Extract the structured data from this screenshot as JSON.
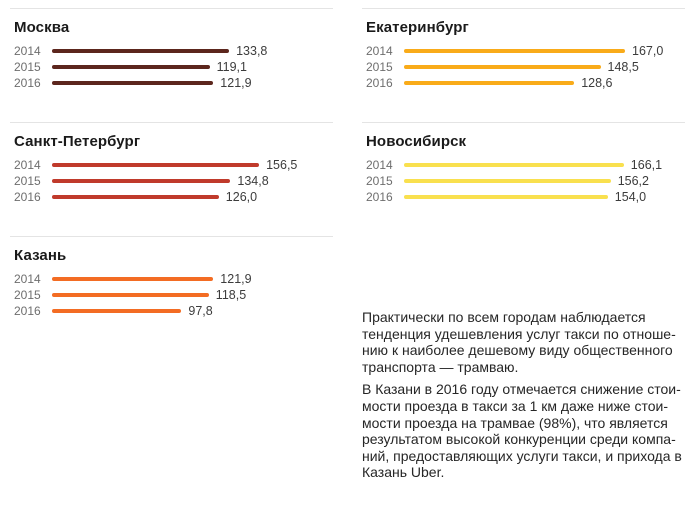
{
  "page": {
    "background": "#ffffff",
    "divider_color": "#e4e4e4"
  },
  "chart_data": {
    "type": "bar",
    "orientation": "horizontal",
    "categories": [
      "2014",
      "2015",
      "2016"
    ],
    "xlim": [
      0,
      170
    ],
    "grid": false,
    "value_labels": "end-of-bar",
    "series": [
      {
        "name": "Москва",
        "column": "left",
        "color": "#5c261d",
        "values": [
          133.8,
          119.1,
          121.9
        ],
        "labels": [
          "133,8",
          "119,1",
          "121,9"
        ]
      },
      {
        "name": "Санкт-Петербург",
        "column": "left",
        "color": "#c03a2b",
        "values": [
          156.5,
          134.8,
          126.0
        ],
        "labels": [
          "156,5",
          "134,8",
          "126,0"
        ]
      },
      {
        "name": "Казань",
        "column": "left",
        "color": "#f36c23",
        "values": [
          121.9,
          118.5,
          97.8
        ],
        "labels": [
          "121,9",
          "118,5",
          "97,8"
        ]
      },
      {
        "name": "Екатеринбург",
        "column": "right",
        "color": "#f9ab19",
        "values": [
          167.0,
          148.5,
          128.6
        ],
        "labels": [
          "167,0",
          "148,5",
          "128,6"
        ]
      },
      {
        "name": "Новосибирск",
        "column": "right",
        "color": "#f9e04e",
        "values": [
          166.1,
          156.2,
          154.0
        ],
        "labels": [
          "166,1",
          "156,2",
          "154,0"
        ]
      }
    ]
  },
  "text_block": {
    "paragraphs": [
      {
        "lines": [
          "Практически по всем городам наблюдается",
          "тенденция удешевления услуг такси по отноше-",
          "нию к наиболее дешевому виду общественного",
          "транспорта — трамваю."
        ]
      },
      {
        "lines": [
          "В Казани в 2016 году отмечается снижение стои-",
          "мости проезда в такси за 1 км даже ниже стои-",
          "мости проезда на трамвае (98%), что является",
          "результатом высокой конкуренции среди компа-",
          "ний, предоставляющих услуги такси, и прихода в",
          "Казань Uber."
        ]
      }
    ]
  }
}
